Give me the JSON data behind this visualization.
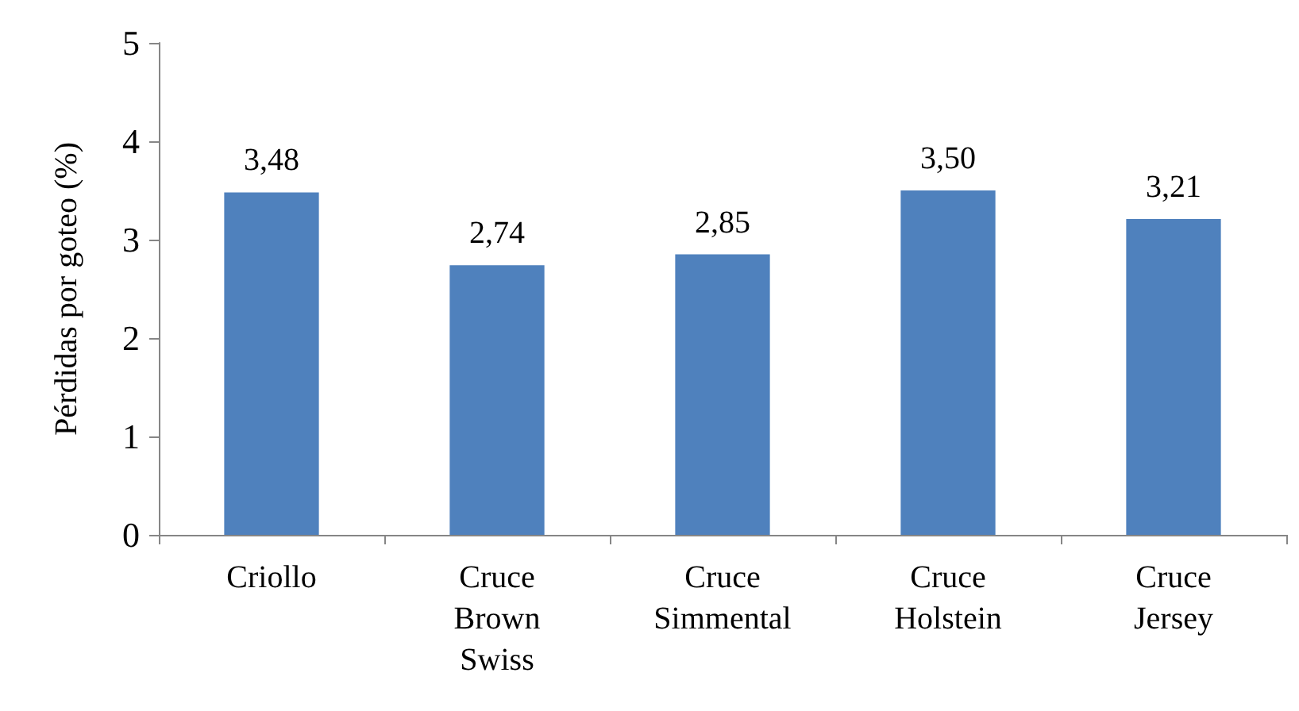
{
  "chart_data": {
    "type": "bar",
    "ylabel": "Pérdidas por goteo (%)",
    "categories": [
      "Criollo",
      "Cruce Brown Swiss",
      "Cruce Simmental",
      "Cruce Holstein",
      "Cruce Jersey"
    ],
    "values": [
      3.48,
      2.74,
      2.85,
      3.5,
      3.21
    ],
    "color": "#4f81bd",
    "value_labels": [
      "3,48",
      "2,74",
      "2,85",
      "3,50",
      "3,21"
    ],
    "ylim": [
      0,
      5
    ],
    "yticks": [
      0,
      1,
      2,
      3,
      4,
      5
    ],
    "grid": false
  }
}
